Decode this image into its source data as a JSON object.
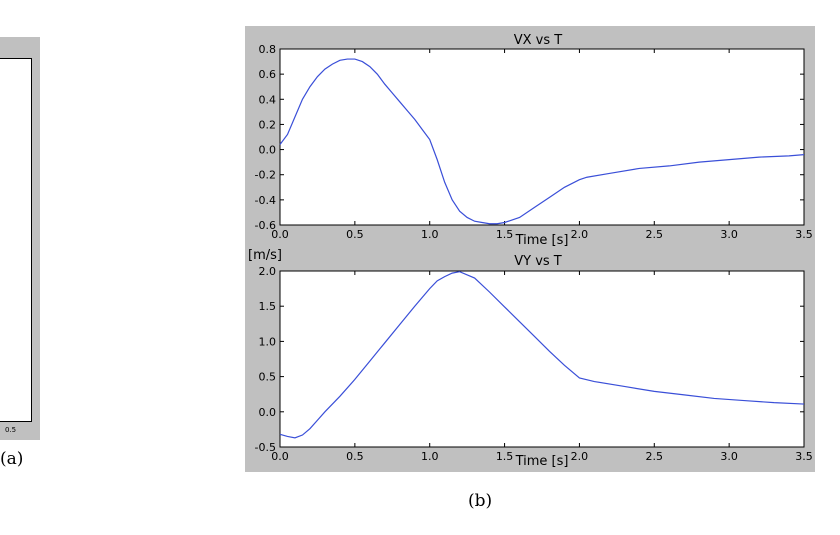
{
  "captions": {
    "a": "(a)",
    "b": "(b)"
  },
  "panel_a": {
    "tick_label": "0.5"
  },
  "shared_ylabel": "[m/s]",
  "chart_data": [
    {
      "type": "line",
      "title": "VX vs T",
      "xlabel": "Time [s]",
      "ylabel": "",
      "xlim": [
        0.0,
        3.5
      ],
      "ylim": [
        -0.6,
        0.8
      ],
      "xticks": [
        "0.0",
        "0.5",
        "1.0",
        "1.5",
        "2.0",
        "2.5",
        "3.0",
        "3.5"
      ],
      "yticks": [
        "-0.6",
        "-0.4",
        "-0.2",
        "0.0",
        "0.2",
        "0.4",
        "0.6",
        "0.8"
      ],
      "grid": false,
      "line_color": "#3a4fd8",
      "series": [
        {
          "x": [
            0.0,
            0.05,
            0.1,
            0.15,
            0.2,
            0.25,
            0.3,
            0.35,
            0.4,
            0.45,
            0.5,
            0.55,
            0.6,
            0.65,
            0.7,
            0.75,
            0.8,
            0.85,
            0.9,
            0.95,
            1.0,
            1.05,
            1.1,
            1.15,
            1.2,
            1.25,
            1.3,
            1.35,
            1.4,
            1.45,
            1.5,
            1.6,
            1.7,
            1.8,
            1.9,
            2.0,
            2.05,
            2.2,
            2.4,
            2.6,
            2.8,
            3.0,
            3.2,
            3.4,
            3.5
          ],
          "y": [
            0.04,
            0.12,
            0.26,
            0.4,
            0.5,
            0.58,
            0.64,
            0.68,
            0.71,
            0.72,
            0.72,
            0.7,
            0.66,
            0.6,
            0.52,
            0.45,
            0.38,
            0.31,
            0.24,
            0.16,
            0.08,
            -0.08,
            -0.26,
            -0.4,
            -0.49,
            -0.54,
            -0.57,
            -0.58,
            -0.59,
            -0.59,
            -0.58,
            -0.54,
            -0.46,
            -0.38,
            -0.3,
            -0.24,
            -0.22,
            -0.19,
            -0.15,
            -0.13,
            -0.1,
            -0.08,
            -0.06,
            -0.05,
            -0.04
          ]
        }
      ]
    },
    {
      "type": "line",
      "title": "VY vs T",
      "xlabel": "Time [s]",
      "ylabel": "",
      "xlim": [
        0.0,
        3.5
      ],
      "ylim": [
        -0.5,
        2.0
      ],
      "xticks": [
        "0.0",
        "0.5",
        "1.0",
        "1.5",
        "2.0",
        "2.5",
        "3.0",
        "3.5"
      ],
      "yticks": [
        "-0.5",
        "0.0",
        "0.5",
        "1.0",
        "1.5",
        "2.0"
      ],
      "grid": false,
      "line_color": "#3a4fd8",
      "series": [
        {
          "x": [
            0.0,
            0.05,
            0.1,
            0.15,
            0.2,
            0.25,
            0.3,
            0.4,
            0.5,
            0.6,
            0.7,
            0.8,
            0.9,
            1.0,
            1.05,
            1.1,
            1.15,
            1.2,
            1.3,
            1.4,
            1.5,
            1.6,
            1.7,
            1.8,
            1.9,
            2.0,
            2.1,
            2.3,
            2.5,
            2.7,
            2.9,
            3.1,
            3.3,
            3.5
          ],
          "y": [
            -0.32,
            -0.35,
            -0.37,
            -0.33,
            -0.24,
            -0.12,
            0.0,
            0.22,
            0.46,
            0.72,
            0.98,
            1.24,
            1.5,
            1.75,
            1.86,
            1.92,
            1.97,
            1.99,
            1.9,
            1.7,
            1.49,
            1.28,
            1.07,
            0.86,
            0.66,
            0.48,
            0.43,
            0.36,
            0.29,
            0.24,
            0.19,
            0.16,
            0.13,
            0.11
          ]
        }
      ]
    }
  ]
}
